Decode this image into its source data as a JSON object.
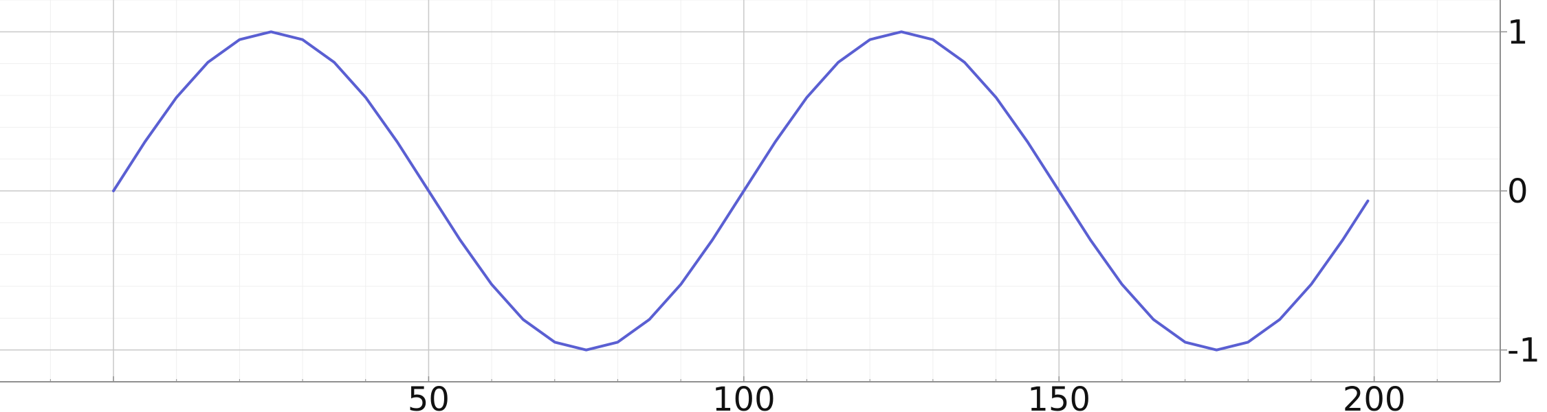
{
  "chart_data": {
    "type": "line",
    "title": "",
    "xlabel": "",
    "ylabel": "",
    "xlim": [
      -18,
      220
    ],
    "ylim": [
      -1.2,
      1.2
    ],
    "grid": true,
    "y_axis_side": "right",
    "x_ticks": [
      50,
      100,
      150,
      200
    ],
    "x_tick_labels": [
      "50",
      "100",
      "150",
      "200"
    ],
    "x_gridlines": [
      0,
      50,
      100,
      150,
      200
    ],
    "y_ticks": [
      1,
      0,
      -1
    ],
    "y_tick_labels": [
      "1",
      "0",
      "-1"
    ],
    "series": [
      {
        "color": "#5a5fd2",
        "x": [
          0,
          5,
          10,
          15,
          20,
          25,
          30,
          35,
          40,
          45,
          50,
          55,
          60,
          65,
          70,
          75,
          80,
          85,
          90,
          95,
          100,
          105,
          110,
          115,
          120,
          125,
          130,
          135,
          140,
          145,
          150,
          155,
          160,
          165,
          170,
          175,
          180,
          185,
          190,
          195,
          199
        ],
        "y": [
          0,
          0.309,
          0.588,
          0.809,
          0.951,
          1,
          0.951,
          0.809,
          0.588,
          0.309,
          0,
          -0.309,
          -0.588,
          -0.809,
          -0.951,
          -1,
          -0.951,
          -0.809,
          -0.588,
          -0.309,
          0,
          0.309,
          0.588,
          0.809,
          0.951,
          1,
          0.951,
          0.809,
          0.588,
          0.309,
          0,
          -0.309,
          -0.588,
          -0.809,
          -0.951,
          -1,
          -0.951,
          -0.809,
          -0.588,
          -0.309,
          -0.063
        ]
      }
    ]
  },
  "colors": {
    "line": "#5a5fd2",
    "major_grid": "#c8c8c8",
    "minor_grid": "#efefef",
    "axis": "#8f8f8f",
    "text": "#111111"
  }
}
